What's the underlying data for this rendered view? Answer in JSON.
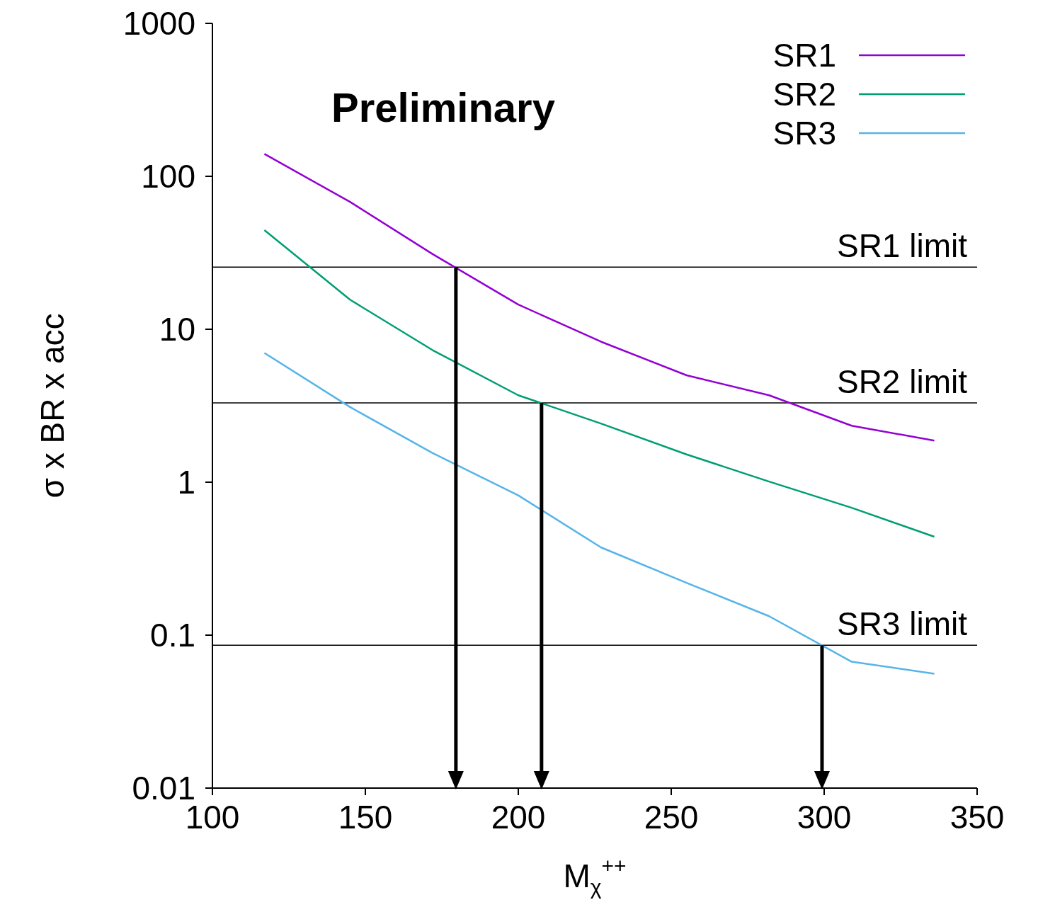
{
  "chart_data": {
    "type": "line",
    "xlabel": "M$_{χ}$$^{++}$",
    "ylabel": "σ x BR x acc",
    "x": [
      117,
      145,
      172,
      200,
      227,
      255,
      282,
      309,
      336
    ],
    "series": [
      {
        "name": "SR1",
        "color": "#9400d3",
        "values": [
          140,
          68,
          31,
          14.5,
          8.3,
          5.0,
          3.7,
          2.34,
          1.87
        ]
      },
      {
        "name": "SR2",
        "color": "#009e73",
        "values": [
          44.5,
          15.6,
          7.3,
          3.7,
          2.42,
          1.52,
          1.01,
          0.68,
          0.44
        ]
      },
      {
        "name": "SR3",
        "color": "#56b4e9",
        "values": [
          7.0,
          3.1,
          1.55,
          0.82,
          0.375,
          0.22,
          0.133,
          0.067,
          0.056
        ]
      }
    ],
    "log": "y",
    "xlim": [
      100,
      350
    ],
    "xticks": [
      100,
      150,
      200,
      250,
      300,
      350
    ],
    "ylim": [
      0.01,
      1000
    ],
    "yticks": [
      0.01,
      0.1,
      1,
      10,
      100,
      1000
    ],
    "ref_lines": [
      {
        "axis": "y",
        "value": 25.5,
        "label": "SR1 limit",
        "color": "#000000"
      },
      {
        "axis": "y",
        "value": 3.3,
        "label": "SR2 limit",
        "color": "#000000"
      },
      {
        "axis": "y",
        "value": 0.086,
        "label": "SR3 limit",
        "color": "#000000"
      },
      {
        "axis": "x",
        "value": 179.6,
        "color": "#000000"
      },
      {
        "axis": "x",
        "value": 207.6,
        "color": "#000000"
      },
      {
        "axis": "x",
        "value": 299.3,
        "color": "#000000"
      }
    ],
    "annotations": [
      "Preliminary"
    ],
    "legend": "top right",
    "grid": false,
    "marker": "none",
    "line_style": "solid"
  }
}
